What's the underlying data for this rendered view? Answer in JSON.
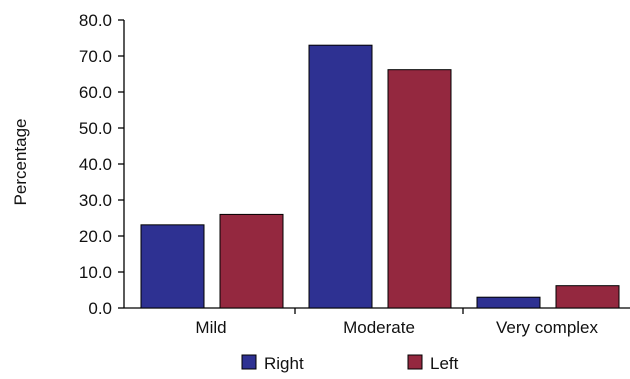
{
  "chart_data": {
    "type": "bar",
    "title": "",
    "xlabel": "",
    "ylabel": "Percentage",
    "ylim": [
      0,
      80
    ],
    "y_tick_values": [
      0,
      10,
      20,
      30,
      40,
      50,
      60,
      70,
      80
    ],
    "y_tick_labels": [
      "0.0",
      "10.0",
      "20.0",
      "30.0",
      "40.0",
      "50.0",
      "60.0",
      "70.0",
      "80.0"
    ],
    "categories": [
      "Mild",
      "Moderate",
      "Very complex"
    ],
    "series": [
      {
        "name": "Right",
        "color": "#2e3192",
        "values": [
          23.1,
          73.0,
          3.0
        ]
      },
      {
        "name": "Left",
        "color": "#94283f",
        "values": [
          26.0,
          66.2,
          6.2
        ]
      }
    ],
    "grid": false,
    "legend": "bottom"
  }
}
